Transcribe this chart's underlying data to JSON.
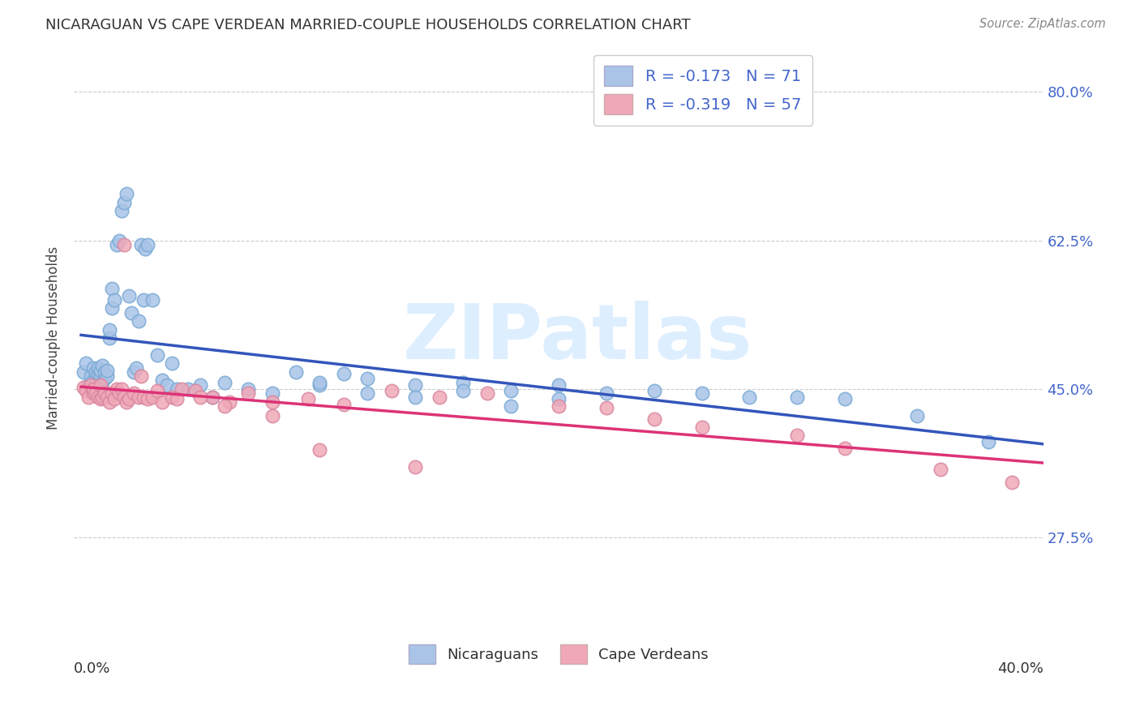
{
  "title": "NICARAGUAN VS CAPE VERDEAN MARRIED-COUPLE HOUSEHOLDS CORRELATION CHART",
  "source": "Source: ZipAtlas.com",
  "ylabel": "Married-couple Households",
  "ytick_vals": [
    0.275,
    0.45,
    0.625,
    0.8
  ],
  "ytick_labels": [
    "27.5%",
    "45.0%",
    "62.5%",
    "80.0%"
  ],
  "xlim": [
    -0.003,
    0.403
  ],
  "ylim": [
    0.16,
    0.86
  ],
  "nic_color": "#aac4e8",
  "nic_edge": "#7aaad4",
  "cv_color": "#f0a8b8",
  "cv_edge": "#d888a0",
  "nic_line_color": "#3355bb",
  "cv_line_color": "#dd3377",
  "legend_text_color": "#4466cc",
  "legend_R_nic": "R = -0.173",
  "legend_N_nic": "N = 71",
  "legend_R_cape": "R = -0.319",
  "legend_N_cape": "N = 57",
  "watermark": "ZIPatlas",
  "watermark_color": "#ddeeff",
  "background_color": "#ffffff",
  "grid_color": "#cccccc",
  "title_color": "#333333",
  "source_color": "#888888",
  "nic_x": [
    0.001,
    0.002,
    0.003,
    0.004,
    0.005,
    0.005,
    0.006,
    0.006,
    0.007,
    0.007,
    0.008,
    0.008,
    0.009,
    0.009,
    0.01,
    0.01,
    0.011,
    0.011,
    0.012,
    0.012,
    0.013,
    0.013,
    0.014,
    0.015,
    0.016,
    0.017,
    0.018,
    0.019,
    0.02,
    0.021,
    0.022,
    0.023,
    0.024,
    0.025,
    0.026,
    0.027,
    0.028,
    0.03,
    0.032,
    0.034,
    0.036,
    0.038,
    0.04,
    0.045,
    0.05,
    0.055,
    0.06,
    0.07,
    0.08,
    0.09,
    0.1,
    0.11,
    0.12,
    0.14,
    0.16,
    0.18,
    0.2,
    0.22,
    0.24,
    0.26,
    0.28,
    0.3,
    0.32,
    0.35,
    0.38,
    0.1,
    0.12,
    0.14,
    0.16,
    0.18,
    0.2
  ],
  "nic_y": [
    0.47,
    0.48,
    0.455,
    0.465,
    0.46,
    0.475,
    0.462,
    0.47,
    0.468,
    0.475,
    0.465,
    0.472,
    0.458,
    0.478,
    0.462,
    0.47,
    0.465,
    0.472,
    0.51,
    0.52,
    0.545,
    0.568,
    0.555,
    0.62,
    0.625,
    0.66,
    0.67,
    0.68,
    0.56,
    0.54,
    0.47,
    0.475,
    0.53,
    0.62,
    0.555,
    0.615,
    0.62,
    0.555,
    0.49,
    0.46,
    0.455,
    0.48,
    0.45,
    0.45,
    0.455,
    0.44,
    0.458,
    0.45,
    0.445,
    0.47,
    0.455,
    0.468,
    0.462,
    0.455,
    0.458,
    0.448,
    0.455,
    0.445,
    0.448,
    0.445,
    0.44,
    0.44,
    0.438,
    0.418,
    0.388,
    0.458,
    0.445,
    0.44,
    0.448,
    0.43,
    0.438
  ],
  "cv_x": [
    0.001,
    0.002,
    0.003,
    0.004,
    0.005,
    0.005,
    0.006,
    0.007,
    0.008,
    0.008,
    0.009,
    0.01,
    0.011,
    0.012,
    0.013,
    0.014,
    0.015,
    0.016,
    0.017,
    0.018,
    0.019,
    0.02,
    0.022,
    0.024,
    0.026,
    0.028,
    0.03,
    0.034,
    0.038,
    0.042,
    0.048,
    0.055,
    0.062,
    0.07,
    0.08,
    0.095,
    0.11,
    0.13,
    0.15,
    0.17,
    0.2,
    0.22,
    0.24,
    0.26,
    0.3,
    0.32,
    0.36,
    0.39,
    0.018,
    0.025,
    0.032,
    0.04,
    0.05,
    0.06,
    0.08,
    0.1,
    0.14
  ],
  "cv_y": [
    0.452,
    0.448,
    0.44,
    0.455,
    0.445,
    0.45,
    0.445,
    0.44,
    0.438,
    0.455,
    0.44,
    0.445,
    0.44,
    0.435,
    0.445,
    0.438,
    0.45,
    0.445,
    0.45,
    0.44,
    0.435,
    0.438,
    0.445,
    0.44,
    0.44,
    0.438,
    0.44,
    0.435,
    0.44,
    0.45,
    0.448,
    0.44,
    0.435,
    0.445,
    0.435,
    0.438,
    0.432,
    0.448,
    0.44,
    0.445,
    0.43,
    0.428,
    0.415,
    0.405,
    0.395,
    0.38,
    0.355,
    0.34,
    0.62,
    0.465,
    0.448,
    0.438,
    0.44,
    0.43,
    0.418,
    0.378,
    0.358
  ]
}
